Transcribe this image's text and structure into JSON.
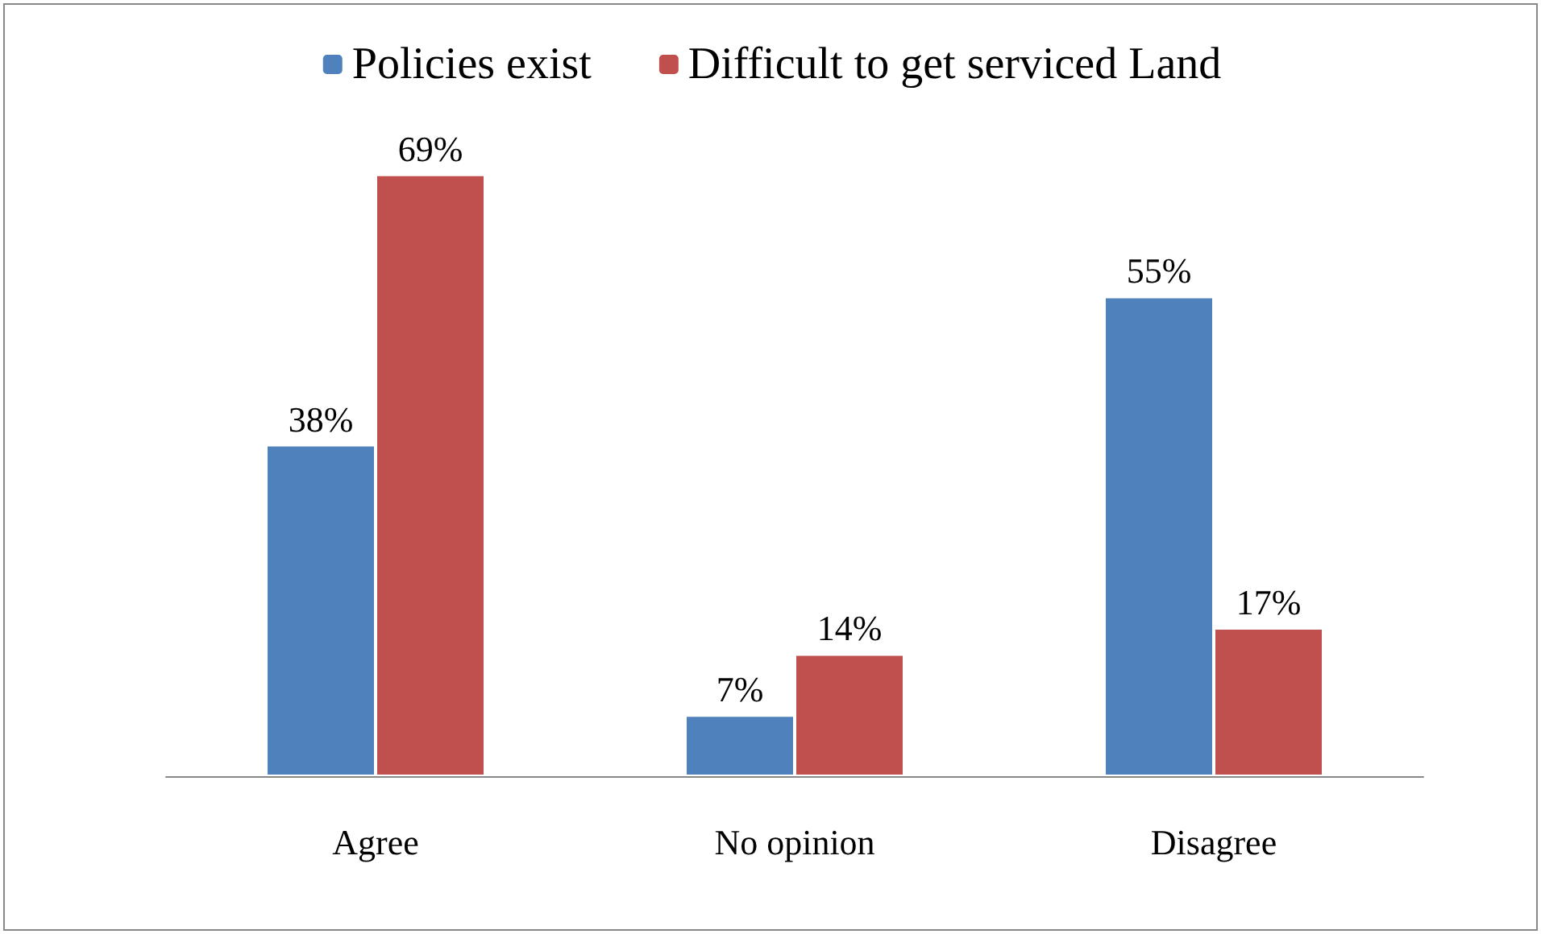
{
  "chart_data": {
    "type": "bar",
    "categories": [
      "Agree",
      "No opinion",
      "Disagree"
    ],
    "series": [
      {
        "name": "Policies exist",
        "color": "#4f81bd",
        "values": [
          38,
          7,
          55
        ],
        "value_labels": [
          "38%",
          "7%",
          "55%"
        ]
      },
      {
        "name": "Difficult to get serviced Land",
        "color": "#c0504d",
        "values": [
          69,
          14,
          17
        ],
        "value_labels": [
          "69%",
          "14%",
          "17%"
        ]
      }
    ],
    "legend": "top"
  }
}
